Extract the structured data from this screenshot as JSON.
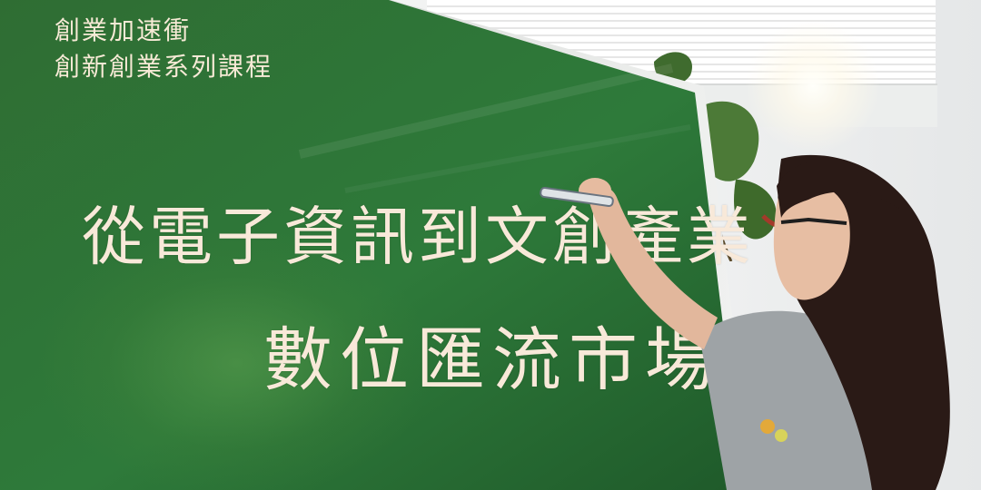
{
  "corner_text": {
    "line1": "創業加速衝",
    "line2": "創新創業系列課程"
  },
  "headline": {
    "line1": "從電子資訊到文創產業",
    "line2": "數位匯流市場"
  },
  "colors": {
    "chalkboard": "#2f7a3a",
    "chalk_text": "#f8e9d9",
    "board_frame": "#d9dcd8",
    "shirt": "#9ea3a6",
    "hair": "#2a1a16"
  },
  "scene_elements": [
    "chalkboard",
    "window-blinds",
    "potted-plant",
    "woman-writing-with-marker"
  ]
}
